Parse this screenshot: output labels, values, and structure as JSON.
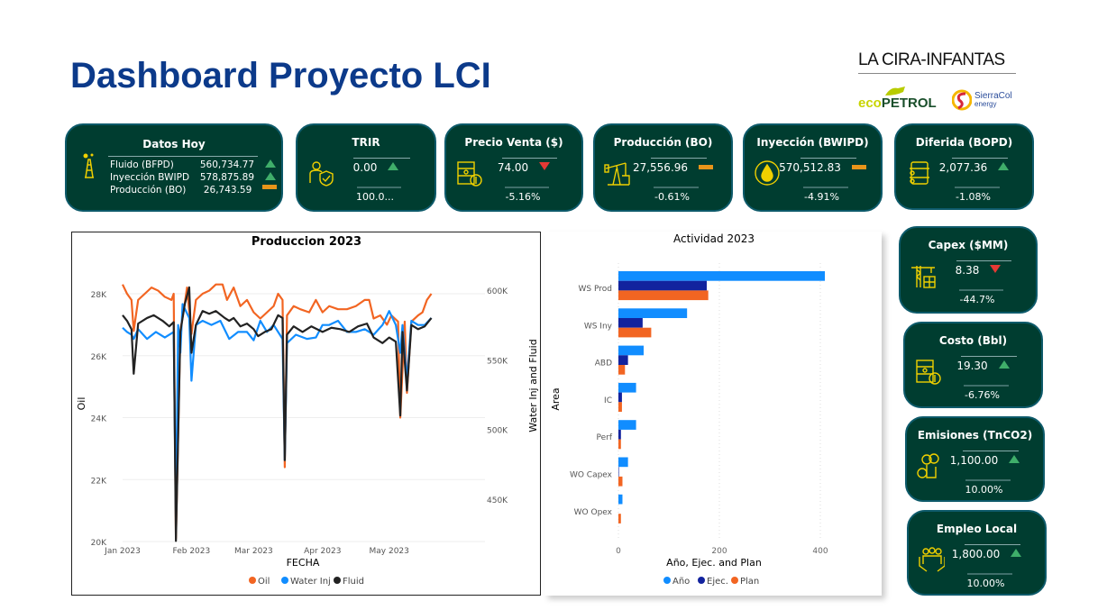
{
  "header": {
    "title": "Dashboard Proyecto LCI",
    "logo_main": "LA CIRA-INFANTAS",
    "logo_eco": "ecopetrol",
    "logo_sierracol": "SierraCol energy"
  },
  "datos_hoy": {
    "title": "Datos Hoy",
    "icon": "oil-rig-icon",
    "rows": [
      {
        "label": "Fluido (BFPD)",
        "value": "560,734.77",
        "trend": "up"
      },
      {
        "label": "Inyección BWIPD",
        "value": "578,875.89",
        "trend": "up"
      },
      {
        "label": "Producción (BO)",
        "value": "26,743.59",
        "trend": "flat"
      }
    ]
  },
  "kpis": [
    {
      "title": "TRIR",
      "value": "0.00",
      "trend": "up",
      "pct": "100.0...",
      "icon": "safety-worker-icon"
    },
    {
      "title": "Precio Venta ($)",
      "value": "74.00",
      "trend": "down",
      "pct": "-5.16%",
      "icon": "barrel-dollar-icon"
    },
    {
      "title": "Producción (BO)",
      "value": "27,556.96",
      "trend": "flat",
      "pct": "-0.61%",
      "icon": "pumpjack-icon"
    },
    {
      "title": "Inyección (BWIPD)",
      "value": "570,512.83",
      "trend": "flat",
      "pct": "-4.91%",
      "icon": "oil-drop-icon"
    },
    {
      "title": "Diferida (BOPD)",
      "value": "2,077.36",
      "trend": "up",
      "pct": "-1.08%",
      "icon": "barrel-icon"
    },
    {
      "title": "Capex ($MM)",
      "value": "8.38",
      "trend": "down",
      "pct": "-44.7%",
      "icon": "construction-crane-icon"
    },
    {
      "title": "Costo (Bbl)",
      "value": "19.30",
      "trend": "up",
      "pct": "-6.76%",
      "icon": "barrel-dollar-icon"
    },
    {
      "title": "Emisiones (TnCO2)",
      "value": "1,100.00",
      "trend": "up",
      "pct": "10.00%",
      "icon": "factory-emissions-icon"
    },
    {
      "title": "Empleo Local",
      "value": "1,800.00",
      "trend": "up",
      "pct": "10.00%",
      "icon": "people-hands-icon"
    }
  ],
  "colors": {
    "card_bg": "#003d30",
    "up": "#3fae6a",
    "down": "#e53935",
    "flat": "#e8951a",
    "icon": "#f0d000",
    "oil": "#f26522",
    "water": "#118dff",
    "fluid": "#222222",
    "ano": "#118dff",
    "ejec": "#12239e",
    "plan": "#f26522"
  },
  "chart_data": [
    {
      "type": "line",
      "title": "Produccion 2023",
      "xlabel": "FECHA",
      "ylabel": "Oil",
      "y2label": "Water Inj and Fluid",
      "x_ticks": [
        "Jan 2023",
        "Feb 2023",
        "Mar 2023",
        "Apr 2023",
        "May 2023"
      ],
      "y_ticks": [
        "20K",
        "22K",
        "24K",
        "26K",
        "28K"
      ],
      "y2_ticks": [
        "450K",
        "500K",
        "550K",
        "600K"
      ],
      "ylim": [
        20000,
        28800
      ],
      "y2lim": [
        420000,
        605000
      ],
      "grid": true,
      "legend": "bottom",
      "series": [
        {
          "name": "Oil",
          "axis": "left",
          "points": [
            [
              "2023-01-01",
              28300
            ],
            [
              "2023-01-03",
              28000
            ],
            [
              "2023-01-05",
              27800
            ],
            [
              "2023-01-06",
              26800
            ],
            [
              "2023-01-08",
              27800
            ],
            [
              "2023-01-11",
              28000
            ],
            [
              "2023-01-14",
              28200
            ],
            [
              "2023-01-17",
              28100
            ],
            [
              "2023-01-20",
              27900
            ],
            [
              "2023-01-23",
              27800
            ],
            [
              "2023-01-24",
              28000
            ],
            [
              "2023-01-25",
              20100
            ],
            [
              "2023-01-27",
              26800
            ],
            [
              "2023-01-29",
              27700
            ],
            [
              "2023-01-30",
              28200
            ],
            [
              "2023-02-01",
              26700
            ],
            [
              "2023-02-03",
              27800
            ],
            [
              "2023-02-06",
              28000
            ],
            [
              "2023-02-09",
              28100
            ],
            [
              "2023-02-12",
              28300
            ],
            [
              "2023-02-15",
              28300
            ],
            [
              "2023-02-17",
              27800
            ],
            [
              "2023-02-20",
              28200
            ],
            [
              "2023-02-23",
              27600
            ],
            [
              "2023-02-26",
              27800
            ],
            [
              "2023-03-01",
              27400
            ],
            [
              "2023-03-04",
              27200
            ],
            [
              "2023-03-07",
              27400
            ],
            [
              "2023-03-10",
              27600
            ],
            [
              "2023-03-12",
              28000
            ],
            [
              "2023-03-14",
              27800
            ],
            [
              "2023-03-15",
              22400
            ],
            [
              "2023-03-16",
              27300
            ],
            [
              "2023-03-19",
              27600
            ],
            [
              "2023-03-22",
              27500
            ],
            [
              "2023-03-26",
              27400
            ],
            [
              "2023-03-29",
              27800
            ],
            [
              "2023-04-01",
              27400
            ],
            [
              "2023-04-04",
              27600
            ],
            [
              "2023-04-08",
              27500
            ],
            [
              "2023-04-12",
              27500
            ],
            [
              "2023-04-16",
              27600
            ],
            [
              "2023-04-20",
              27800
            ],
            [
              "2023-04-22",
              27800
            ],
            [
              "2023-04-24",
              27200
            ],
            [
              "2023-04-27",
              27300
            ],
            [
              "2023-04-30",
              27000
            ],
            [
              "2023-05-02",
              27300
            ],
            [
              "2023-05-05",
              27100
            ],
            [
              "2023-05-06",
              24000
            ],
            [
              "2023-05-08",
              27100
            ],
            [
              "2023-05-09",
              24800
            ],
            [
              "2023-05-11",
              27100
            ],
            [
              "2023-05-14",
              27300
            ],
            [
              "2023-05-16",
              27400
            ],
            [
              "2023-05-18",
              27800
            ],
            [
              "2023-05-20",
              28000
            ]
          ]
        },
        {
          "name": "Water Inj",
          "axis": "right",
          "points": [
            [
              "2023-01-01",
              573000
            ],
            [
              "2023-01-03",
              570000
            ],
            [
              "2023-01-05",
              568000
            ],
            [
              "2023-01-06",
              565000
            ],
            [
              "2023-01-08",
              572000
            ],
            [
              "2023-01-12",
              565000
            ],
            [
              "2023-01-16",
              570000
            ],
            [
              "2023-01-20",
              566000
            ],
            [
              "2023-01-24",
              570000
            ],
            [
              "2023-01-25",
              435000
            ],
            [
              "2023-01-26",
              575000
            ],
            [
              "2023-01-27",
              555000
            ],
            [
              "2023-01-28",
              590000
            ],
            [
              "2023-01-31",
              580000
            ],
            [
              "2023-02-01",
              535000
            ],
            [
              "2023-02-03",
              575000
            ],
            [
              "2023-02-06",
              578000
            ],
            [
              "2023-02-10",
              575000
            ],
            [
              "2023-02-14",
              578000
            ],
            [
              "2023-02-18",
              565000
            ],
            [
              "2023-02-22",
              570000
            ],
            [
              "2023-02-26",
              570000
            ],
            [
              "2023-03-01",
              564000
            ],
            [
              "2023-03-04",
              578000
            ],
            [
              "2023-03-07",
              570000
            ],
            [
              "2023-03-10",
              575000
            ],
            [
              "2023-03-14",
              565000
            ],
            [
              "2023-03-15",
              478000
            ],
            [
              "2023-03-16",
              562000
            ],
            [
              "2023-03-20",
              568000
            ],
            [
              "2023-03-25",
              565000
            ],
            [
              "2023-03-29",
              566000
            ],
            [
              "2023-04-01",
              575000
            ],
            [
              "2023-04-04",
              575000
            ],
            [
              "2023-04-08",
              578000
            ],
            [
              "2023-04-12",
              570000
            ],
            [
              "2023-04-16",
              570000
            ],
            [
              "2023-04-20",
              572000
            ],
            [
              "2023-04-24",
              568000
            ],
            [
              "2023-04-28",
              575000
            ],
            [
              "2023-05-01",
              585000
            ],
            [
              "2023-05-04",
              575000
            ],
            [
              "2023-05-06",
              555000
            ],
            [
              "2023-05-07",
              575000
            ],
            [
              "2023-05-09",
              535000
            ],
            [
              "2023-05-11",
              578000
            ],
            [
              "2023-05-14",
              575000
            ],
            [
              "2023-05-17",
              575000
            ],
            [
              "2023-05-20",
              580000
            ]
          ]
        },
        {
          "name": "Fluid",
          "axis": "right",
          "points": [
            [
              "2023-01-01",
              582000
            ],
            [
              "2023-01-03",
              578000
            ],
            [
              "2023-01-05",
              572000
            ],
            [
              "2023-01-06",
              540000
            ],
            [
              "2023-01-08",
              576000
            ],
            [
              "2023-01-12",
              580000
            ],
            [
              "2023-01-15",
              582000
            ],
            [
              "2023-01-19",
              578000
            ],
            [
              "2023-01-22",
              574000
            ],
            [
              "2023-01-24",
              577000
            ],
            [
              "2023-01-25",
              420000
            ],
            [
              "2023-01-27",
              570000
            ],
            [
              "2023-01-29",
              590000
            ],
            [
              "2023-01-31",
              602000
            ],
            [
              "2023-02-01",
              555000
            ],
            [
              "2023-02-03",
              575000
            ],
            [
              "2023-02-06",
              585000
            ],
            [
              "2023-02-09",
              583000
            ],
            [
              "2023-02-12",
              585000
            ],
            [
              "2023-02-16",
              580000
            ],
            [
              "2023-02-18",
              578000
            ],
            [
              "2023-02-20",
              580000
            ],
            [
              "2023-02-23",
              574000
            ],
            [
              "2023-02-26",
              576000
            ],
            [
              "2023-03-01",
              572000
            ],
            [
              "2023-03-03",
              567000
            ],
            [
              "2023-03-06",
              570000
            ],
            [
              "2023-03-09",
              572000
            ],
            [
              "2023-03-12",
              582000
            ],
            [
              "2023-03-14",
              580000
            ],
            [
              "2023-03-15",
              478000
            ],
            [
              "2023-03-16",
              568000
            ],
            [
              "2023-03-19",
              574000
            ],
            [
              "2023-03-23",
              570000
            ],
            [
              "2023-03-27",
              574000
            ],
            [
              "2023-04-01",
              570000
            ],
            [
              "2023-04-05",
              573000
            ],
            [
              "2023-04-09",
              572000
            ],
            [
              "2023-04-13",
              570000
            ],
            [
              "2023-04-17",
              574000
            ],
            [
              "2023-04-21",
              576000
            ],
            [
              "2023-04-24",
              566000
            ],
            [
              "2023-04-28",
              562000
            ],
            [
              "2023-05-01",
              566000
            ],
            [
              "2023-05-04",
              563000
            ],
            [
              "2023-05-06",
              510000
            ],
            [
              "2023-05-07",
              570000
            ],
            [
              "2023-05-09",
              528000
            ],
            [
              "2023-05-11",
              575000
            ],
            [
              "2023-05-14",
              572000
            ],
            [
              "2023-05-17",
              574000
            ],
            [
              "2023-05-20",
              580000
            ]
          ]
        }
      ]
    },
    {
      "type": "bar",
      "orientation": "horizontal",
      "title": "Actividad 2023",
      "xlabel": "Año, Ejec. and Plan",
      "ylabel": "Area",
      "xlim": [
        0,
        500
      ],
      "x_ticks": [
        "0",
        "200",
        "400"
      ],
      "grid": true,
      "legend": "bottom",
      "categories": [
        "WS Prod",
        "WS Iny",
        "ABD",
        "IC",
        "Perf",
        "WO Capex",
        "WO Opex"
      ],
      "series": [
        {
          "name": "Año",
          "values": [
            409,
            136,
            50,
            35,
            35,
            19,
            8
          ]
        },
        {
          "name": "Ejec.",
          "values": [
            175,
            48,
            19,
            7,
            5,
            1,
            0
          ]
        },
        {
          "name": "Plan",
          "values": [
            178,
            65,
            13,
            7,
            5,
            8,
            5
          ]
        }
      ]
    }
  ]
}
